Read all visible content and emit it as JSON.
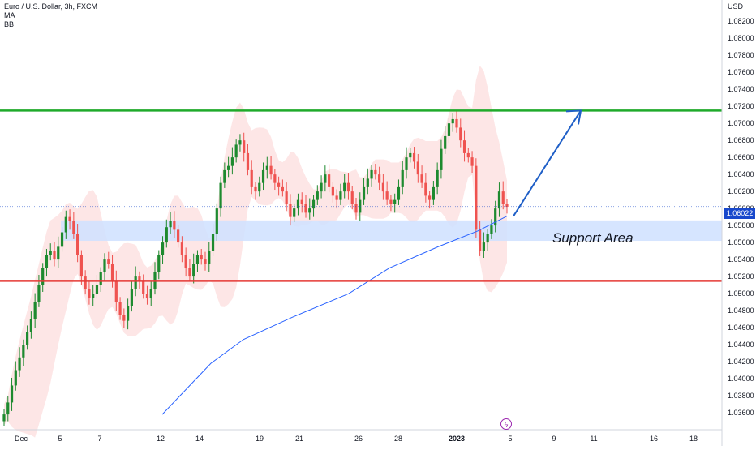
{
  "legend": {
    "symbol": "Euro / U.S. Dollar, 3h, FXCM",
    "indicator_1": "MA",
    "indicator_2": "BB"
  },
  "currency_label": "USD",
  "last_price_label": "1.06022",
  "annotation": "Support Area",
  "event_icon": "lightning-icon",
  "colors": {
    "up": "#26a69a",
    "up_body": "#1e8a2f",
    "down": "#ef5350",
    "resistance_line": "#1faa2a",
    "support_line": "#e53935",
    "support_zone": "#cfe0ff",
    "bollinger_fill": "#fde2e2",
    "moving_average": "#2962ff",
    "arrow": "#1f5fc7",
    "price_tag": "#1848cc"
  },
  "chart_data": {
    "type": "candlestick",
    "symbol": "EURUSD",
    "timeframe": "3h",
    "y_axis": {
      "ticks": [
        "1.08200",
        "1.08000",
        "1.07800",
        "1.07600",
        "1.07400",
        "1.07200",
        "1.07000",
        "1.06800",
        "1.06600",
        "1.06400",
        "1.06200",
        "1.06000",
        "1.05800",
        "1.05600",
        "1.05400",
        "1.05200",
        "1.05000",
        "1.04800",
        "1.04600",
        "1.04400",
        "1.04200",
        "1.04000",
        "1.03800",
        "1.03600"
      ],
      "range": [
        1.034,
        1.0845
      ]
    },
    "x_axis": {
      "ticks": [
        "Dec",
        "5",
        "7",
        "12",
        "14",
        "19",
        "21",
        "26",
        "28",
        "2023",
        "5",
        "9",
        "11",
        "16",
        "18"
      ]
    },
    "resistance_level": 1.0715,
    "support_level": 1.0515,
    "support_zone": [
      1.0562,
      1.0586
    ],
    "projection_arrow": {
      "from": 1.0591,
      "to": 1.0715
    },
    "last_price": 1.06022,
    "candles_close": [
      1.0358,
      1.0372,
      1.0392,
      1.041,
      1.0425,
      1.044,
      1.0455,
      1.047,
      1.049,
      1.051,
      1.053,
      1.0545,
      1.055,
      1.054,
      1.0555,
      1.0572,
      1.059,
      1.0585,
      1.057,
      1.0545,
      1.052,
      1.0505,
      1.0495,
      1.05,
      1.051,
      1.0525,
      1.054,
      1.0535,
      1.0515,
      1.049,
      1.0475,
      1.0468,
      1.0485,
      1.0505,
      1.052,
      1.0515,
      1.05,
      1.0495,
      1.0505,
      1.0525,
      1.0545,
      1.056,
      1.0578,
      1.0585,
      1.0575,
      1.056,
      1.0545,
      1.053,
      1.052,
      1.0535,
      1.0545,
      1.054,
      1.0535,
      1.055,
      1.057,
      1.06,
      1.063,
      1.0645,
      1.065,
      1.066,
      1.0675,
      1.068,
      1.0665,
      1.0645,
      1.0625,
      1.062,
      1.063,
      1.0645,
      1.065,
      1.064,
      1.063,
      1.0625,
      1.062,
      1.0605,
      1.059,
      1.06,
      1.061,
      1.0605,
      1.0595,
      1.06,
      1.061,
      1.062,
      1.063,
      1.064,
      1.0625,
      1.0615,
      1.061,
      1.062,
      1.063,
      1.062,
      1.0605,
      1.0595,
      1.061,
      1.0625,
      1.0635,
      1.0645,
      1.064,
      1.063,
      1.062,
      1.061,
      1.0605,
      1.061,
      1.0625,
      1.0645,
      1.066,
      1.0665,
      1.0655,
      1.064,
      1.063,
      1.0615,
      1.061,
      1.0625,
      1.0645,
      1.067,
      1.0685,
      1.07,
      1.0705,
      1.0695,
      1.068,
      1.0665,
      1.066,
      1.065,
      1.0575,
      1.055,
      1.056,
      1.057,
      1.058,
      1.06,
      1.062,
      1.0605,
      1.0602
    ]
  }
}
